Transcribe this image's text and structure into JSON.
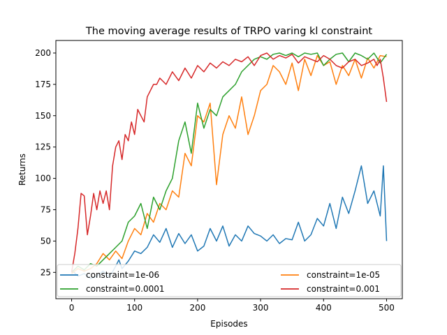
{
  "chart_data": {
    "type": "line",
    "title": "The moving average results of TRPO varing kl constraint",
    "xlabel": "Episodes",
    "ylabel": "Returns",
    "xlim": [
      -25,
      525
    ],
    "ylim": [
      4,
      210
    ],
    "xticks": [
      0,
      100,
      200,
      300,
      400,
      500
    ],
    "yticks": [
      25,
      50,
      75,
      100,
      125,
      150,
      175,
      200
    ],
    "legend": {
      "placement": "lower-center",
      "columns": 2
    },
    "grid": false,
    "series": [
      {
        "name": "constraint=1e-06",
        "color": "#1f77b4",
        "points": [
          [
            0,
            27
          ],
          [
            10,
            22
          ],
          [
            20,
            24
          ],
          [
            30,
            20
          ],
          [
            40,
            22
          ],
          [
            50,
            26
          ],
          [
            60,
            21
          ],
          [
            70,
            30
          ],
          [
            75,
            35
          ],
          [
            80,
            28
          ],
          [
            90,
            34
          ],
          [
            100,
            42
          ],
          [
            110,
            40
          ],
          [
            120,
            45
          ],
          [
            130,
            55
          ],
          [
            140,
            49
          ],
          [
            150,
            60
          ],
          [
            160,
            45
          ],
          [
            170,
            56
          ],
          [
            180,
            48
          ],
          [
            190,
            55
          ],
          [
            200,
            42
          ],
          [
            210,
            46
          ],
          [
            220,
            60
          ],
          [
            230,
            50
          ],
          [
            240,
            62
          ],
          [
            250,
            46
          ],
          [
            260,
            55
          ],
          [
            270,
            50
          ],
          [
            280,
            62
          ],
          [
            290,
            56
          ],
          [
            300,
            54
          ],
          [
            310,
            50
          ],
          [
            320,
            55
          ],
          [
            330,
            48
          ],
          [
            340,
            52
          ],
          [
            350,
            51
          ],
          [
            360,
            65
          ],
          [
            370,
            50
          ],
          [
            380,
            55
          ],
          [
            390,
            68
          ],
          [
            400,
            62
          ],
          [
            410,
            80
          ],
          [
            420,
            60
          ],
          [
            430,
            85
          ],
          [
            440,
            72
          ],
          [
            450,
            90
          ],
          [
            460,
            110
          ],
          [
            470,
            80
          ],
          [
            480,
            90
          ],
          [
            490,
            70
          ],
          [
            495,
            110
          ],
          [
            500,
            50
          ]
        ]
      },
      {
        "name": "constraint=1e-05",
        "color": "#ff7f0e",
        "points": [
          [
            0,
            24
          ],
          [
            10,
            28
          ],
          [
            20,
            26
          ],
          [
            30,
            28
          ],
          [
            40,
            32
          ],
          [
            50,
            40
          ],
          [
            60,
            35
          ],
          [
            70,
            42
          ],
          [
            80,
            36
          ],
          [
            90,
            50
          ],
          [
            100,
            60
          ],
          [
            110,
            55
          ],
          [
            120,
            72
          ],
          [
            130,
            65
          ],
          [
            140,
            80
          ],
          [
            150,
            75
          ],
          [
            160,
            90
          ],
          [
            170,
            85
          ],
          [
            180,
            120
          ],
          [
            190,
            110
          ],
          [
            200,
            150
          ],
          [
            210,
            145
          ],
          [
            220,
            160
          ],
          [
            230,
            95
          ],
          [
            240,
            135
          ],
          [
            250,
            150
          ],
          [
            260,
            140
          ],
          [
            270,
            165
          ],
          [
            280,
            135
          ],
          [
            290,
            150
          ],
          [
            300,
            170
          ],
          [
            310,
            175
          ],
          [
            320,
            190
          ],
          [
            330,
            185
          ],
          [
            340,
            175
          ],
          [
            350,
            192
          ],
          [
            360,
            170
          ],
          [
            370,
            195
          ],
          [
            380,
            182
          ],
          [
            390,
            198
          ],
          [
            400,
            190
          ],
          [
            410,
            193
          ],
          [
            420,
            175
          ],
          [
            430,
            190
          ],
          [
            440,
            182
          ],
          [
            450,
            195
          ],
          [
            460,
            180
          ],
          [
            470,
            196
          ],
          [
            480,
            188
          ],
          [
            490,
            198
          ],
          [
            500,
            197
          ]
        ]
      },
      {
        "name": "constraint=0.0001",
        "color": "#2ca02c",
        "points": [
          [
            0,
            25
          ],
          [
            10,
            30
          ],
          [
            20,
            27
          ],
          [
            30,
            32
          ],
          [
            40,
            30
          ],
          [
            50,
            35
          ],
          [
            60,
            40
          ],
          [
            70,
            45
          ],
          [
            80,
            50
          ],
          [
            90,
            65
          ],
          [
            100,
            70
          ],
          [
            110,
            80
          ],
          [
            120,
            60
          ],
          [
            130,
            85
          ],
          [
            140,
            75
          ],
          [
            150,
            90
          ],
          [
            160,
            100
          ],
          [
            170,
            130
          ],
          [
            180,
            145
          ],
          [
            190,
            120
          ],
          [
            200,
            160
          ],
          [
            210,
            140
          ],
          [
            220,
            155
          ],
          [
            230,
            150
          ],
          [
            240,
            165
          ],
          [
            250,
            170
          ],
          [
            260,
            175
          ],
          [
            270,
            185
          ],
          [
            280,
            190
          ],
          [
            290,
            195
          ],
          [
            300,
            197
          ],
          [
            310,
            195
          ],
          [
            320,
            199
          ],
          [
            330,
            200
          ],
          [
            340,
            198
          ],
          [
            350,
            200
          ],
          [
            360,
            197
          ],
          [
            370,
            200
          ],
          [
            380,
            199
          ],
          [
            390,
            200
          ],
          [
            400,
            190
          ],
          [
            410,
            195
          ],
          [
            420,
            199
          ],
          [
            430,
            200
          ],
          [
            440,
            193
          ],
          [
            450,
            200
          ],
          [
            460,
            198
          ],
          [
            470,
            195
          ],
          [
            480,
            200
          ],
          [
            490,
            192
          ],
          [
            500,
            199
          ]
        ]
      },
      {
        "name": "constraint=0.001",
        "color": "#d62728",
        "points": [
          [
            0,
            25
          ],
          [
            5,
            40
          ],
          [
            10,
            60
          ],
          [
            15,
            88
          ],
          [
            20,
            86
          ],
          [
            25,
            55
          ],
          [
            30,
            70
          ],
          [
            35,
            88
          ],
          [
            40,
            75
          ],
          [
            45,
            90
          ],
          [
            50,
            80
          ],
          [
            55,
            90
          ],
          [
            60,
            75
          ],
          [
            65,
            110
          ],
          [
            70,
            125
          ],
          [
            75,
            130
          ],
          [
            80,
            115
          ],
          [
            85,
            135
          ],
          [
            90,
            130
          ],
          [
            95,
            145
          ],
          [
            100,
            135
          ],
          [
            105,
            155
          ],
          [
            110,
            150
          ],
          [
            115,
            145
          ],
          [
            120,
            165
          ],
          [
            125,
            170
          ],
          [
            130,
            175
          ],
          [
            135,
            175
          ],
          [
            140,
            180
          ],
          [
            150,
            175
          ],
          [
            160,
            185
          ],
          [
            170,
            178
          ],
          [
            180,
            188
          ],
          [
            190,
            180
          ],
          [
            200,
            190
          ],
          [
            210,
            185
          ],
          [
            220,
            192
          ],
          [
            230,
            188
          ],
          [
            240,
            193
          ],
          [
            250,
            190
          ],
          [
            260,
            195
          ],
          [
            270,
            193
          ],
          [
            280,
            197
          ],
          [
            290,
            190
          ],
          [
            300,
            198
          ],
          [
            310,
            200
          ],
          [
            320,
            195
          ],
          [
            330,
            198
          ],
          [
            340,
            196
          ],
          [
            350,
            199
          ],
          [
            360,
            192
          ],
          [
            370,
            197
          ],
          [
            380,
            195
          ],
          [
            390,
            193
          ],
          [
            400,
            198
          ],
          [
            410,
            195
          ],
          [
            420,
            190
          ],
          [
            430,
            188
          ],
          [
            440,
            193
          ],
          [
            450,
            195
          ],
          [
            460,
            190
          ],
          [
            470,
            192
          ],
          [
            480,
            195
          ],
          [
            485,
            190
          ],
          [
            490,
            195
          ],
          [
            495,
            180
          ],
          [
            500,
            161
          ]
        ]
      }
    ]
  }
}
